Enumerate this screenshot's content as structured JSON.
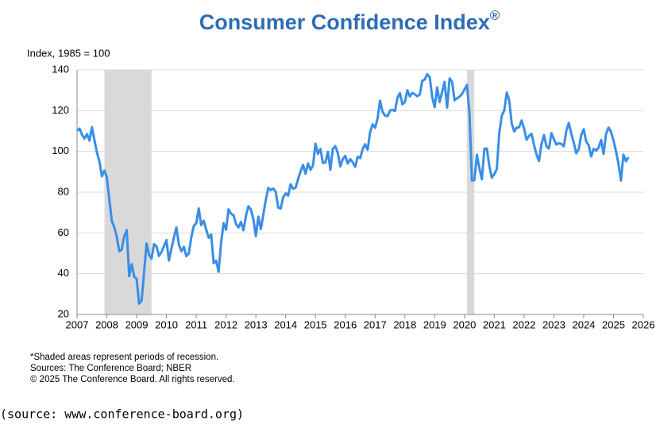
{
  "chart_data": {
    "type": "line",
    "title": "Consumer Confidence Index",
    "title_mark": "®",
    "y_label": "Index, 1985 = 100",
    "footnotes": [
      "*Shaded areas represent periods of recession.",
      "Sources: The Conference Board;  NBER",
      "© 2025 The Conference Board. All rights reserved."
    ],
    "source": "(source: www.conference-board.org)",
    "color": "#3a8ee6",
    "grid": true,
    "recession_color": "#d9d9d9",
    "recessions": [
      [
        2007.92,
        2009.5
      ],
      [
        2020.08,
        2020.33
      ]
    ],
    "xlim": [
      2007,
      2026
    ],
    "xticks": [
      2007,
      2008,
      2009,
      2010,
      2011,
      2012,
      2013,
      2014,
      2015,
      2016,
      2017,
      2018,
      2019,
      2020,
      2021,
      2022,
      2023,
      2024,
      2025,
      2026
    ],
    "ylim": [
      20,
      140
    ],
    "yticks": [
      20,
      40,
      60,
      80,
      100,
      120,
      140
    ],
    "x": [
      2007,
      2007.083,
      2007.167,
      2007.25,
      2007.333,
      2007.417,
      2007.5,
      2007.583,
      2007.667,
      2007.75,
      2007.833,
      2007.917,
      2008,
      2008.083,
      2008.167,
      2008.25,
      2008.333,
      2008.417,
      2008.5,
      2008.583,
      2008.667,
      2008.75,
      2008.833,
      2008.917,
      2009,
      2009.083,
      2009.167,
      2009.25,
      2009.333,
      2009.417,
      2009.5,
      2009.583,
      2009.667,
      2009.75,
      2009.833,
      2009.917,
      2010,
      2010.083,
      2010.167,
      2010.25,
      2010.333,
      2010.417,
      2010.5,
      2010.583,
      2010.667,
      2010.75,
      2010.833,
      2010.917,
      2011,
      2011.083,
      2011.167,
      2011.25,
      2011.333,
      2011.417,
      2011.5,
      2011.583,
      2011.667,
      2011.75,
      2011.833,
      2011.917,
      2012,
      2012.083,
      2012.167,
      2012.25,
      2012.333,
      2012.417,
      2012.5,
      2012.583,
      2012.667,
      2012.75,
      2012.833,
      2012.917,
      2013,
      2013.083,
      2013.167,
      2013.25,
      2013.333,
      2013.417,
      2013.5,
      2013.583,
      2013.667,
      2013.75,
      2013.833,
      2013.917,
      2014,
      2014.083,
      2014.167,
      2014.25,
      2014.333,
      2014.417,
      2014.5,
      2014.583,
      2014.667,
      2014.75,
      2014.833,
      2014.917,
      2015,
      2015.083,
      2015.167,
      2015.25,
      2015.333,
      2015.417,
      2015.5,
      2015.583,
      2015.667,
      2015.75,
      2015.833,
      2015.917,
      2016,
      2016.083,
      2016.167,
      2016.25,
      2016.333,
      2016.417,
      2016.5,
      2016.583,
      2016.667,
      2016.75,
      2016.833,
      2016.917,
      2017,
      2017.083,
      2017.167,
      2017.25,
      2017.333,
      2017.417,
      2017.5,
      2017.583,
      2017.667,
      2017.75,
      2017.833,
      2017.917,
      2018,
      2018.083,
      2018.167,
      2018.25,
      2018.333,
      2018.417,
      2018.5,
      2018.583,
      2018.667,
      2018.75,
      2018.833,
      2018.917,
      2019,
      2019.083,
      2019.167,
      2019.25,
      2019.333,
      2019.417,
      2019.5,
      2019.583,
      2019.667,
      2019.75,
      2019.833,
      2019.917,
      2020,
      2020.083,
      2020.167,
      2020.25,
      2020.333,
      2020.417,
      2020.5,
      2020.583,
      2020.667,
      2020.75,
      2020.833,
      2020.917,
      2021,
      2021.083,
      2021.167,
      2021.25,
      2021.333,
      2021.417,
      2021.5,
      2021.583,
      2021.667,
      2021.75,
      2021.833,
      2021.917,
      2022,
      2022.083,
      2022.167,
      2022.25,
      2022.333,
      2022.417,
      2022.5,
      2022.583,
      2022.667,
      2022.75,
      2022.833,
      2022.917,
      2023,
      2023.083,
      2023.167,
      2023.25,
      2023.333,
      2023.417,
      2023.5,
      2023.583,
      2023.667,
      2023.75,
      2023.833,
      2023.917,
      2024,
      2024.083,
      2024.167,
      2024.25,
      2024.333,
      2024.417,
      2024.5,
      2024.583,
      2024.667,
      2024.75,
      2024.833,
      2024.917,
      2025,
      2025.083,
      2025.167,
      2025.25,
      2025.333,
      2025.417,
      2025.5
    ],
    "values": [
      110.2,
      111.2,
      108.2,
      106.3,
      108.5,
      105.3,
      111.9,
      105.6,
      99.5,
      95.2,
      87.8,
      90.6,
      87.3,
      76.4,
      65.9,
      62.8,
      58.1,
      51.0,
      51.9,
      58.5,
      61.4,
      38.8,
      44.7,
      38.6,
      37.4,
      25.3,
      26.9,
      40.8,
      54.8,
      49.3,
      47.4,
      54.5,
      53.4,
      48.7,
      50.6,
      53.6,
      56.5,
      46.4,
      52.3,
      57.7,
      62.7,
      54.3,
      51.0,
      53.2,
      48.6,
      49.9,
      57.8,
      63.4,
      64.8,
      72.0,
      63.8,
      66.0,
      61.7,
      57.6,
      59.2,
      45.2,
      46.4,
      40.9,
      55.2,
      64.8,
      61.5,
      71.6,
      69.5,
      68.7,
      64.4,
      62.7,
      65.4,
      61.3,
      68.4,
      73.1,
      71.5,
      66.7,
      58.4,
      68.0,
      61.9,
      69.0,
      76.2,
      82.1,
      81.0,
      81.8,
      80.2,
      72.4,
      72.0,
      77.5,
      79.4,
      78.3,
      83.9,
      81.7,
      82.2,
      86.4,
      90.3,
      93.4,
      89.0,
      94.1,
      91.0,
      93.1,
      103.8,
      98.8,
      101.3,
      94.3,
      94.6,
      99.8,
      91.0,
      101.3,
      102.6,
      99.1,
      92.6,
      96.3,
      97.8,
      94.0,
      96.2,
      94.7,
      92.4,
      97.4,
      96.7,
      101.1,
      103.5,
      100.8,
      109.4,
      113.3,
      111.6,
      116.1,
      124.9,
      119.4,
      117.6,
      117.3,
      120.0,
      120.4,
      119.8,
      126.2,
      128.6,
      123.1,
      124.3,
      130.0,
      127.0,
      128.7,
      128.0,
      127.1,
      127.9,
      134.7,
      135.3,
      137.9,
      136.4,
      126.6,
      121.7,
      131.4,
      124.2,
      129.2,
      134.1,
      121.5,
      135.8,
      134.2,
      125.1,
      126.1,
      126.8,
      128.2,
      130.4,
      132.6,
      118.8,
      85.7,
      85.9,
      98.3,
      91.7,
      86.3,
      101.3,
      101.4,
      92.9,
      87.1,
      88.9,
      91.3,
      109.0,
      117.5,
      120.0,
      128.9,
      125.1,
      113.8,
      109.8,
      111.6,
      111.9,
      115.2,
      111.1,
      105.7,
      107.6,
      108.6,
      103.2,
      98.4,
      95.3,
      103.6,
      108.0,
      102.5,
      101.4,
      109.0,
      106.0,
      103.4,
      104.0,
      103.7,
      102.5,
      110.1,
      114.0,
      108.7,
      104.3,
      99.1,
      101.0,
      108.0,
      110.9,
      104.8,
      103.1,
      97.5,
      101.3,
      100.4,
      101.9,
      105.6,
      98.7,
      108.7,
      111.7,
      109.5,
      105.3,
      100.1,
      93.9,
      85.7,
      98.4,
      95.2,
      97.2
    ]
  }
}
